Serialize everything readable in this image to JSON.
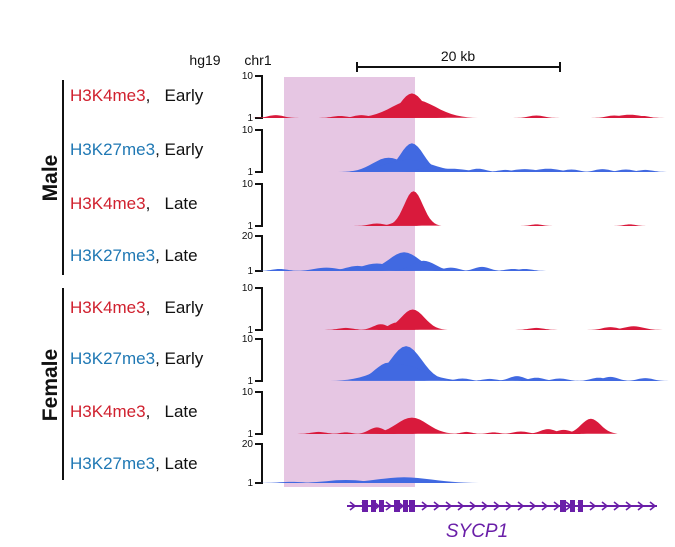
{
  "header": {
    "genome": "hg19",
    "chromosome": "chr1",
    "scale_label": "20 kb"
  },
  "colors": {
    "h3k4me3": "#d91a3c",
    "h3k27me3": "#4169e1",
    "label_k4": "#d0202e",
    "label_k27": "#1f78b4",
    "highlight": "#e6c6e3",
    "gene": "#6a1fa8"
  },
  "groups": [
    {
      "name": "Male"
    },
    {
      "name": "Female"
    }
  ],
  "tracks": [
    {
      "mark": "H3K4me3",
      "sep": ",   ",
      "stage": "Early",
      "ymax": "10",
      "ymin": "1",
      "type": "k4",
      "peaks": [
        [
          0.02,
          0.07,
          0.02
        ],
        [
          0.185,
          0.05,
          0.02
        ],
        [
          0.24,
          0.07,
          0.02
        ],
        [
          0.33,
          0.12,
          0.02
        ],
        [
          0.355,
          0.16,
          0.035
        ],
        [
          0.37,
          0.6,
          0.03
        ],
        [
          0.375,
          0.45,
          0.055
        ],
        [
          0.69,
          0.06,
          0.02
        ],
        [
          0.89,
          0.06,
          0.02
        ],
        [
          0.93,
          0.08,
          0.03
        ],
        [
          0.965,
          0.05,
          0.015
        ]
      ]
    },
    {
      "mark": "H3K27me3",
      "sep": ", ",
      "stage": "Early",
      "ymax": "10",
      "ymin": "1",
      "type": "k27",
      "peaks": [
        [
          0.25,
          0.06,
          0.02
        ],
        [
          0.31,
          0.35,
          0.04
        ],
        [
          0.37,
          0.7,
          0.03
        ],
        [
          0.36,
          0.3,
          0.06
        ],
        [
          0.42,
          0.12,
          0.03
        ],
        [
          0.47,
          0.08,
          0.04
        ],
        [
          0.54,
          0.08,
          0.02
        ],
        [
          0.61,
          0.05,
          0.02
        ],
        [
          0.66,
          0.07,
          0.03
        ],
        [
          0.72,
          0.08,
          0.03
        ],
        [
          0.78,
          0.06,
          0.02
        ],
        [
          0.86,
          0.07,
          0.02
        ],
        [
          0.92,
          0.06,
          0.02
        ],
        [
          0.97,
          0.05,
          0.02
        ]
      ]
    },
    {
      "mark": "H3K4me3",
      "sep": ",   ",
      "stage": "Late",
      "ymax": "10",
      "ymin": "1",
      "type": "k4",
      "peaks": [
        [
          0.28,
          0.06,
          0.02
        ],
        [
          0.34,
          0.12,
          0.02
        ],
        [
          0.374,
          0.85,
          0.024
        ],
        [
          0.69,
          0.04,
          0.015
        ],
        [
          0.93,
          0.04,
          0.015
        ]
      ]
    },
    {
      "mark": "H3K27me3",
      "sep": ", ",
      "stage": "Late",
      "ymax": "20",
      "ymin": "1",
      "type": "k27",
      "peaks": [
        [
          0.03,
          0.06,
          0.02
        ],
        [
          0.15,
          0.1,
          0.03
        ],
        [
          0.23,
          0.15,
          0.03
        ],
        [
          0.28,
          0.22,
          0.04
        ],
        [
          0.35,
          0.55,
          0.04
        ],
        [
          0.4,
          0.3,
          0.03
        ],
        [
          0.47,
          0.1,
          0.02
        ],
        [
          0.55,
          0.12,
          0.02
        ],
        [
          0.63,
          0.06,
          0.02
        ],
        [
          0.66,
          0.06,
          0.02
        ]
      ]
    },
    {
      "mark": "H3K4me3",
      "sep": ",   ",
      "stage": "Early",
      "ymax": "10",
      "ymin": "1",
      "type": "k4",
      "peaks": [
        [
          0.2,
          0.05,
          0.02
        ],
        [
          0.29,
          0.14,
          0.02
        ],
        [
          0.33,
          0.18,
          0.02
        ],
        [
          0.372,
          0.5,
          0.03
        ],
        [
          0.69,
          0.05,
          0.02
        ],
        [
          0.88,
          0.07,
          0.02
        ],
        [
          0.94,
          0.09,
          0.025
        ]
      ]
    },
    {
      "mark": "H3K27me3",
      "sep": ", ",
      "stage": "Early",
      "ymax": "10",
      "ymin": "1",
      "type": "k27",
      "peaks": [
        [
          0.31,
          0.45,
          0.035
        ],
        [
          0.355,
          0.85,
          0.04
        ],
        [
          0.34,
          0.4,
          0.06
        ],
        [
          0.5,
          0.06,
          0.02
        ],
        [
          0.57,
          0.05,
          0.02
        ],
        [
          0.64,
          0.12,
          0.02
        ],
        [
          0.69,
          0.08,
          0.02
        ],
        [
          0.75,
          0.06,
          0.02
        ],
        [
          0.85,
          0.08,
          0.02
        ],
        [
          0.88,
          0.1,
          0.02
        ],
        [
          0.97,
          0.07,
          0.02
        ]
      ]
    },
    {
      "mark": "H3K4me3",
      "sep": ",   ",
      "stage": "Late",
      "ymax": "10",
      "ymin": "1",
      "type": "k4",
      "peaks": [
        [
          0.13,
          0.05,
          0.02
        ],
        [
          0.2,
          0.04,
          0.015
        ],
        [
          0.28,
          0.16,
          0.02
        ],
        [
          0.33,
          0.12,
          0.02
        ],
        [
          0.37,
          0.4,
          0.04
        ],
        [
          0.51,
          0.05,
          0.015
        ],
        [
          0.58,
          0.04,
          0.015
        ],
        [
          0.65,
          0.06,
          0.02
        ],
        [
          0.72,
          0.12,
          0.02
        ],
        [
          0.76,
          0.1,
          0.02
        ],
        [
          0.83,
          0.37,
          0.025
        ]
      ]
    },
    {
      "mark": "H3K27me3",
      "sep": ", ",
      "stage": "Late",
      "ymax": "20",
      "ymin": "1",
      "type": "k27",
      "peaks": [
        [
          0.06,
          0.03,
          0.03
        ],
        [
          0.2,
          0.08,
          0.05
        ],
        [
          0.3,
          0.08,
          0.04
        ],
        [
          0.35,
          0.15,
          0.07
        ],
        [
          0.42,
          0.05,
          0.03
        ]
      ]
    }
  ],
  "gene": {
    "name": "SYCP1"
  }
}
